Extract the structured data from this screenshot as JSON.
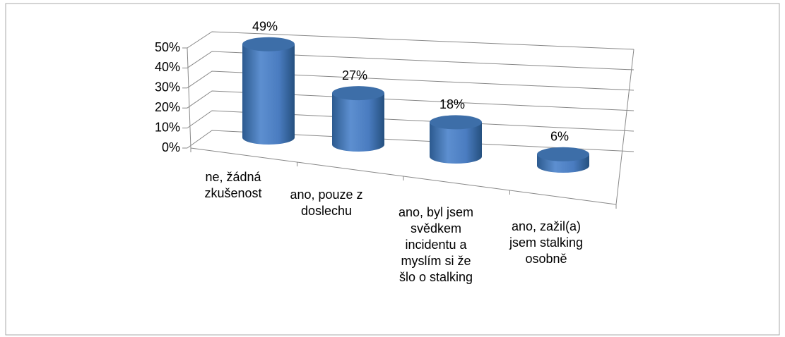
{
  "chart_data": {
    "type": "bar3d-cylinder",
    "categories": [
      "ne, žádná zkušenost",
      "ano, pouze z doslechu",
      "ano, byl jsem svědkem incidentu  a myslím si že šlo o stalking",
      "ano, zažil(a) jsem stalking osobně"
    ],
    "values": [
      49,
      27,
      18,
      6
    ],
    "value_labels": [
      "49%",
      "27%",
      "18%",
      "6%"
    ],
    "color": "#4f81bd",
    "ylim": [
      0,
      50
    ],
    "yticks": [
      {
        "value": 0,
        "label": "0%"
      },
      {
        "value": 10,
        "label": "10%"
      },
      {
        "value": 20,
        "label": "20%"
      },
      {
        "value": 30,
        "label": "30%"
      },
      {
        "value": 40,
        "label": "40%"
      },
      {
        "value": 50,
        "label": "50%"
      }
    ],
    "grid": true
  }
}
